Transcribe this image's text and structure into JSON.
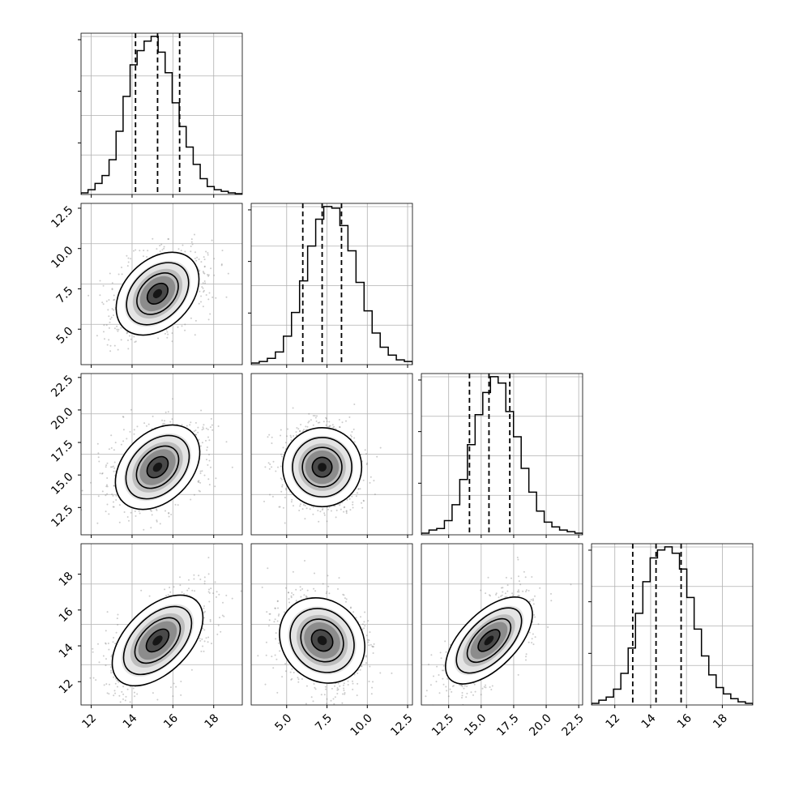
{
  "chart_data": {
    "type": "corner",
    "title": "",
    "parameters": [
      {
        "range": [
          11.5,
          19.4
        ],
        "ticks": [
          12,
          14,
          16,
          18
        ],
        "tick_labels": [
          "12",
          "14",
          "16",
          "18"
        ],
        "mean": 15.25,
        "sigma": 1.08,
        "quantiles": [
          14.17,
          15.25,
          16.33
        ]
      },
      {
        "range": [
          2.8,
          12.8
        ],
        "ticks": [
          5.0,
          7.5,
          10.0,
          12.5
        ],
        "tick_labels": [
          "5.0",
          "7.5",
          "10.0",
          "12.5"
        ],
        "mean": 7.2,
        "sigma": 1.2,
        "quantiles": [
          6.0,
          7.2,
          8.4
        ]
      },
      {
        "range": [
          10.4,
          22.8
        ],
        "ticks": [
          12.5,
          15.0,
          17.5,
          20.0,
          22.5
        ],
        "tick_labels": [
          "12.5",
          "15.0",
          "17.5",
          "20.0",
          "22.5"
        ],
        "mean": 15.6,
        "sigma": 1.55,
        "quantiles": [
          14.1,
          15.6,
          17.2
        ]
      },
      {
        "range": [
          10.7,
          19.7
        ],
        "ticks": [
          12,
          14,
          16,
          18
        ],
        "tick_labels": [
          "12",
          "14",
          "16",
          "18"
        ],
        "mean": 14.3,
        "sigma": 1.3,
        "quantiles": [
          13.0,
          14.3,
          15.7
        ]
      }
    ],
    "correlations": [
      {
        "row": 1,
        "col": 0,
        "rho": 0.35
      },
      {
        "row": 2,
        "col": 0,
        "rho": 0.35
      },
      {
        "row": 2,
        "col": 1,
        "rho": 0.0
      },
      {
        "row": 3,
        "col": 0,
        "rho": 0.5
      },
      {
        "row": 3,
        "col": 1,
        "rho": -0.15
      },
      {
        "row": 3,
        "col": 2,
        "rho": 0.6
      }
    ],
    "histograms": [
      [
        0.01,
        0.03,
        0.07,
        0.12,
        0.22,
        0.4,
        0.62,
        0.82,
        0.91,
        0.97,
        1.0,
        0.9,
        0.77,
        0.58,
        0.43,
        0.3,
        0.19,
        0.1,
        0.05,
        0.03,
        0.02,
        0.01,
        0.005
      ],
      [
        0.01,
        0.02,
        0.04,
        0.08,
        0.18,
        0.33,
        0.53,
        0.75,
        0.92,
        1.0,
        0.99,
        0.88,
        0.72,
        0.52,
        0.34,
        0.2,
        0.11,
        0.06,
        0.03,
        0.02
      ],
      [
        0.01,
        0.03,
        0.04,
        0.09,
        0.19,
        0.35,
        0.57,
        0.76,
        0.9,
        1.0,
        0.96,
        0.78,
        0.62,
        0.42,
        0.27,
        0.15,
        0.08,
        0.05,
        0.03,
        0.02,
        0.01
      ],
      [
        0.01,
        0.03,
        0.05,
        0.1,
        0.2,
        0.36,
        0.58,
        0.78,
        0.93,
        0.98,
        1.0,
        0.96,
        0.86,
        0.68,
        0.48,
        0.31,
        0.19,
        0.11,
        0.07,
        0.04,
        0.02,
        0.01
      ]
    ],
    "histogram_max": 1.02,
    "contour_levels_sigma": [
      0.5,
      1.0,
      1.5,
      2.0
    ],
    "quantiles_shown": [
      0.16,
      0.5,
      0.84
    ],
    "grid": true,
    "colors": {
      "line": "#000000",
      "points": "#808080",
      "grid": "#b0b0b0"
    }
  }
}
